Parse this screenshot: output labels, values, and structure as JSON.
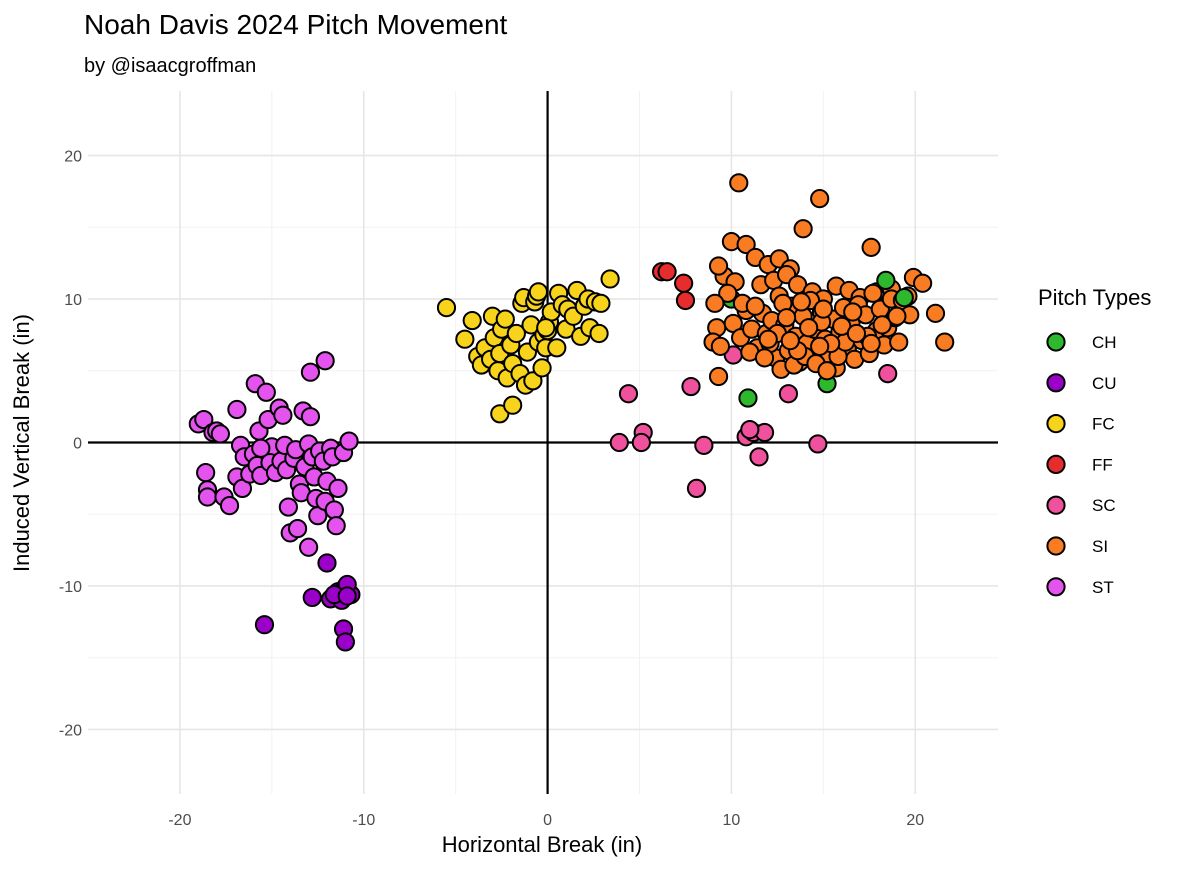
{
  "chart_data": {
    "type": "scatter",
    "title": "Noah Davis 2024 Pitch Movement",
    "subtitle": "by @isaacgroffman",
    "xlabel": "Horizontal Break (in)",
    "ylabel": "Induced Vertical Break (in)",
    "xlim": [
      -25,
      24.5
    ],
    "ylim": [
      -24.5,
      24.5
    ],
    "xticks": [
      -20,
      -10,
      0,
      10,
      20
    ],
    "yticks": [
      -20,
      -10,
      0,
      10,
      20
    ],
    "grid": true,
    "reference_lines": {
      "x": 0,
      "y": 0
    },
    "legend": {
      "title": "Pitch Types",
      "placement": "right"
    },
    "series": [
      {
        "name": "CH",
        "color": "#2db82d",
        "points": [
          [
            10.0,
            10.0
          ],
          [
            10.9,
            3.1
          ],
          [
            15.2,
            4.1
          ],
          [
            18.4,
            11.3
          ],
          [
            19.4,
            10.1
          ]
        ]
      },
      {
        "name": "CU",
        "color": "#9b00c8",
        "points": [
          [
            -15.4,
            -12.7
          ],
          [
            -12.0,
            -8.4
          ],
          [
            -12.8,
            -10.8
          ],
          [
            -11.8,
            -10.9
          ],
          [
            -11.4,
            -10.4
          ],
          [
            -11.0,
            -10.1
          ],
          [
            -10.7,
            -10.6
          ],
          [
            -10.9,
            -9.9
          ],
          [
            -11.2,
            -11.0
          ],
          [
            -11.6,
            -10.6
          ],
          [
            -11.1,
            -13.0
          ],
          [
            -11.0,
            -13.9
          ],
          [
            -10.9,
            -10.7
          ]
        ]
      },
      {
        "name": "FC",
        "color": "#f8d31c",
        "points": [
          [
            -5.5,
            9.4
          ],
          [
            -4.5,
            7.2
          ],
          [
            -4.1,
            8.5
          ],
          [
            -3.8,
            6.0
          ],
          [
            -3.6,
            5.4
          ],
          [
            -3.4,
            6.6
          ],
          [
            -3.1,
            5.8
          ],
          [
            -3.0,
            8.8
          ],
          [
            -2.9,
            7.3
          ],
          [
            -2.7,
            5.0
          ],
          [
            -2.6,
            6.2
          ],
          [
            -2.5,
            7.9
          ],
          [
            -2.3,
            8.6
          ],
          [
            -2.2,
            4.5
          ],
          [
            -2.0,
            6.8
          ],
          [
            -1.9,
            5.5
          ],
          [
            -1.7,
            7.6
          ],
          [
            -1.5,
            4.8
          ],
          [
            -1.4,
            9.7
          ],
          [
            -1.3,
            10.1
          ],
          [
            -1.2,
            4.0
          ],
          [
            -1.1,
            6.3
          ],
          [
            -0.9,
            8.2
          ],
          [
            -0.8,
            4.3
          ],
          [
            -0.7,
            9.8
          ],
          [
            -0.6,
            10.2
          ],
          [
            -0.5,
            7.0
          ],
          [
            -0.3,
            5.2
          ],
          [
            -0.2,
            7.5
          ],
          [
            -0.1,
            6.6
          ],
          [
            0.0,
            7.8
          ],
          [
            0.1,
            8.4
          ],
          [
            0.2,
            9.1
          ],
          [
            0.5,
            6.6
          ],
          [
            0.6,
            10.4
          ],
          [
            0.8,
            9.6
          ],
          [
            1.0,
            7.9
          ],
          [
            1.1,
            9.3
          ],
          [
            1.4,
            8.8
          ],
          [
            1.6,
            10.6
          ],
          [
            1.8,
            7.4
          ],
          [
            2.0,
            9.5
          ],
          [
            2.2,
            10.0
          ],
          [
            2.3,
            8.0
          ],
          [
            2.6,
            9.8
          ],
          [
            2.8,
            7.6
          ],
          [
            2.9,
            9.7
          ],
          [
            3.4,
            11.4
          ],
          [
            -2.6,
            2.0
          ],
          [
            -1.9,
            2.6
          ],
          [
            -0.5,
            10.5
          ],
          [
            -0.1,
            8.0
          ]
        ]
      },
      {
        "name": "FF",
        "color": "#e62c2c",
        "points": [
          [
            6.2,
            11.9
          ],
          [
            6.5,
            11.9
          ],
          [
            7.4,
            11.1
          ],
          [
            7.5,
            9.9
          ]
        ]
      },
      {
        "name": "SC",
        "color": "#f0519c",
        "points": [
          [
            4.4,
            3.4
          ],
          [
            3.9,
            0.0
          ],
          [
            5.2,
            0.7
          ],
          [
            5.1,
            0.0
          ],
          [
            7.8,
            3.9
          ],
          [
            8.5,
            -0.2
          ],
          [
            8.1,
            -3.2
          ],
          [
            10.1,
            6.1
          ],
          [
            10.8,
            0.4
          ],
          [
            11.2,
            0.7
          ],
          [
            11.5,
            -1.0
          ],
          [
            11.8,
            0.7
          ],
          [
            13.1,
            3.4
          ],
          [
            14.7,
            -0.1
          ],
          [
            18.5,
            4.8
          ],
          [
            11.0,
            0.9
          ]
        ]
      },
      {
        "name": "SI",
        "color": "#f97c22",
        "points": [
          [
            10.4,
            18.1
          ],
          [
            14.8,
            17.0
          ],
          [
            10.0,
            14.0
          ],
          [
            10.8,
            13.8
          ],
          [
            13.9,
            14.9
          ],
          [
            17.6,
            13.6
          ],
          [
            11.3,
            12.9
          ],
          [
            12.0,
            12.4
          ],
          [
            12.6,
            12.8
          ],
          [
            13.2,
            12.1
          ],
          [
            9.6,
            11.6
          ],
          [
            10.2,
            11.2
          ],
          [
            9.8,
            10.4
          ],
          [
            11.6,
            11.0
          ],
          [
            12.3,
            11.3
          ],
          [
            13.0,
            11.7
          ],
          [
            13.6,
            11.0
          ],
          [
            14.4,
            10.5
          ],
          [
            15.0,
            10.0
          ],
          [
            15.7,
            10.9
          ],
          [
            16.4,
            10.6
          ],
          [
            17.0,
            10.1
          ],
          [
            17.9,
            10.5
          ],
          [
            18.7,
            10.7
          ],
          [
            19.6,
            10.2
          ],
          [
            19.9,
            11.5
          ],
          [
            20.4,
            11.1
          ],
          [
            21.1,
            9.0
          ],
          [
            21.6,
            7.0
          ],
          [
            9.3,
            12.3
          ],
          [
            9.1,
            9.7
          ],
          [
            9.2,
            8.0
          ],
          [
            9.0,
            7.0
          ],
          [
            9.4,
            6.7
          ],
          [
            9.3,
            4.6
          ],
          [
            10.1,
            8.3
          ],
          [
            10.5,
            7.3
          ],
          [
            10.8,
            9.2
          ],
          [
            11.1,
            7.9
          ],
          [
            11.4,
            6.6
          ],
          [
            11.7,
            9.0
          ],
          [
            11.9,
            7.6
          ],
          [
            12.2,
            8.5
          ],
          [
            12.4,
            5.9
          ],
          [
            12.6,
            10.2
          ],
          [
            12.9,
            8.2
          ],
          [
            13.1,
            6.4
          ],
          [
            13.3,
            9.5
          ],
          [
            13.5,
            7.4
          ],
          [
            13.7,
            5.6
          ],
          [
            13.9,
            8.8
          ],
          [
            14.1,
            6.9
          ],
          [
            14.3,
            9.9
          ],
          [
            14.5,
            7.9
          ],
          [
            14.7,
            5.7
          ],
          [
            14.9,
            9.1
          ],
          [
            15.1,
            7.2
          ],
          [
            15.3,
            6.1
          ],
          [
            15.5,
            8.6
          ],
          [
            15.7,
            5.2
          ],
          [
            15.9,
            7.7
          ],
          [
            16.1,
            9.4
          ],
          [
            16.3,
            6.5
          ],
          [
            16.5,
            8.3
          ],
          [
            16.7,
            5.8
          ],
          [
            16.9,
            9.6
          ],
          [
            17.1,
            7.1
          ],
          [
            17.3,
            8.9
          ],
          [
            17.5,
            6.2
          ],
          [
            17.7,
            10.4
          ],
          [
            17.9,
            7.8
          ],
          [
            18.1,
            9.3
          ],
          [
            18.3,
            6.8
          ],
          [
            18.5,
            8.0
          ],
          [
            18.7,
            10.0
          ],
          [
            18.9,
            8.7
          ],
          [
            19.1,
            7.0
          ],
          [
            19.3,
            9.9
          ],
          [
            19.7,
            8.9
          ],
          [
            12.1,
            6.9
          ],
          [
            12.7,
            5.1
          ],
          [
            13.4,
            5.4
          ],
          [
            14.0,
            6.0
          ],
          [
            14.6,
            5.5
          ],
          [
            15.2,
            5.0
          ],
          [
            15.8,
            6.0
          ],
          [
            16.2,
            7.0
          ],
          [
            11.0,
            6.3
          ],
          [
            12.8,
            9.7
          ],
          [
            13.8,
            9.8
          ],
          [
            14.9,
            8.4
          ],
          [
            16.6,
            9.1
          ],
          [
            17.4,
            7.4
          ],
          [
            18.2,
            8.2
          ],
          [
            10.6,
            9.7
          ],
          [
            11.3,
            9.5
          ],
          [
            13.0,
            8.7
          ],
          [
            14.2,
            8.0
          ],
          [
            15.4,
            6.9
          ],
          [
            16.0,
            8.1
          ],
          [
            12.5,
            7.6
          ],
          [
            15.0,
            9.3
          ],
          [
            11.8,
            5.9
          ],
          [
            13.6,
            6.4
          ],
          [
            14.8,
            6.7
          ],
          [
            16.8,
            7.6
          ],
          [
            17.6,
            6.9
          ],
          [
            19.0,
            8.8
          ],
          [
            12.0,
            7.2
          ],
          [
            13.2,
            7.1
          ]
        ]
      },
      {
        "name": "ST",
        "color": "#e453ee",
        "points": [
          [
            -19.0,
            1.3
          ],
          [
            -18.7,
            1.6
          ],
          [
            -18.2,
            0.7
          ],
          [
            -18.0,
            0.8
          ],
          [
            -18.6,
            -2.1
          ],
          [
            -18.5,
            -3.3
          ],
          [
            -18.5,
            -3.8
          ],
          [
            -17.6,
            -3.8
          ],
          [
            -17.3,
            -4.4
          ],
          [
            -16.9,
            2.3
          ],
          [
            -16.7,
            -0.2
          ],
          [
            -16.5,
            -1.0
          ],
          [
            -16.9,
            -2.4
          ],
          [
            -16.6,
            -3.2
          ],
          [
            -16.2,
            -2.2
          ],
          [
            -16.0,
            -0.8
          ],
          [
            -15.8,
            -1.6
          ],
          [
            -15.9,
            4.1
          ],
          [
            -15.7,
            0.8
          ],
          [
            -15.6,
            -2.3
          ],
          [
            -15.3,
            3.5
          ],
          [
            -15.2,
            1.6
          ],
          [
            -15.0,
            -0.3
          ],
          [
            -15.1,
            -1.4
          ],
          [
            -14.8,
            -2.1
          ],
          [
            -14.5,
            -1.3
          ],
          [
            -14.6,
            2.4
          ],
          [
            -14.4,
            1.9
          ],
          [
            -14.3,
            -0.2
          ],
          [
            -14.2,
            -1.9
          ],
          [
            -14.1,
            -4.5
          ],
          [
            -14.0,
            -6.3
          ],
          [
            -13.8,
            -1.1
          ],
          [
            -13.7,
            -0.5
          ],
          [
            -13.5,
            -2.9
          ],
          [
            -13.4,
            -3.5
          ],
          [
            -13.2,
            -1.7
          ],
          [
            -13.3,
            2.2
          ],
          [
            -12.9,
            1.8
          ],
          [
            -13.0,
            -0.1
          ],
          [
            -12.8,
            -1.0
          ],
          [
            -12.7,
            -2.4
          ],
          [
            -12.6,
            -3.9
          ],
          [
            -12.5,
            -5.1
          ],
          [
            -12.4,
            -0.6
          ],
          [
            -12.2,
            -1.3
          ],
          [
            -12.1,
            -4.1
          ],
          [
            -12.0,
            -2.7
          ],
          [
            -11.8,
            -0.4
          ],
          [
            -11.7,
            -1.0
          ],
          [
            -11.6,
            -4.7
          ],
          [
            -11.5,
            -5.8
          ],
          [
            -11.4,
            -3.2
          ],
          [
            -11.1,
            -0.7
          ],
          [
            -10.8,
            0.1
          ],
          [
            -12.9,
            4.9
          ],
          [
            -12.1,
            5.7
          ],
          [
            -13.6,
            -6.0
          ],
          [
            -13.0,
            -7.3
          ],
          [
            -15.6,
            -0.4
          ],
          [
            -17.8,
            0.6
          ]
        ]
      }
    ]
  }
}
